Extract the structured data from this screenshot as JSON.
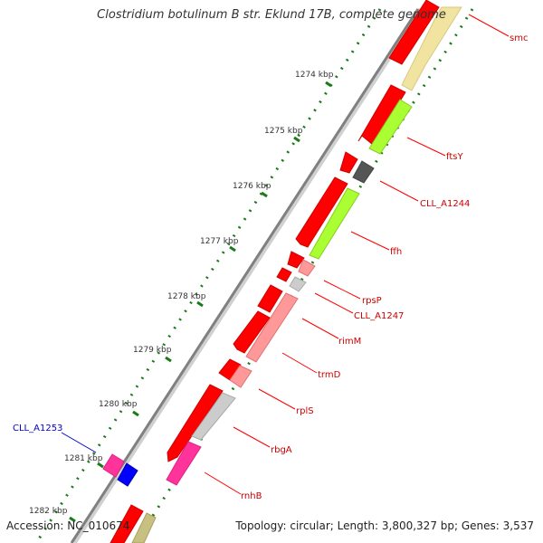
{
  "title": "Clostridium botulinum B str. Eklund 17B, complete genome",
  "footer": {
    "accession": "Accession: NC_010674",
    "summary": "Topology: circular; Length: 3,800,327 bp; Genes: 3,537"
  },
  "colors": {
    "backbone": "#808080",
    "cds": "#ff0000",
    "tick_dot": "#1a7a1a",
    "label_line": "#ff0000",
    "label_text": "#cc0000",
    "highlight_label": "#0000cc"
  },
  "kbp_ticks": [
    {
      "label": "1274 kbp",
      "kb": 1274
    },
    {
      "label": "1275 kbp",
      "kb": 1275
    },
    {
      "label": "1276 kbp",
      "kb": 1276
    },
    {
      "label": "1277 kbp",
      "kb": 1277
    },
    {
      "label": "1278 kbp",
      "kb": 1278
    },
    {
      "label": "1279 kbp",
      "kb": 1279
    },
    {
      "label": "1280 kbp",
      "kb": 1280
    },
    {
      "label": "1281 kbp",
      "kb": 1281
    },
    {
      "label": "1282 kbp",
      "kb": 1282
    }
  ],
  "gene_labels": [
    {
      "name": "smc",
      "color": "#cc0000"
    },
    {
      "name": "ftsY",
      "color": "#cc0000"
    },
    {
      "name": "CLL_A1244",
      "color": "#cc0000"
    },
    {
      "name": "ffh",
      "color": "#cc0000"
    },
    {
      "name": "rpsP",
      "color": "#cc0000"
    },
    {
      "name": "CLL_A1247",
      "color": "#cc0000"
    },
    {
      "name": "rimM",
      "color": "#cc0000"
    },
    {
      "name": "trmD",
      "color": "#cc0000"
    },
    {
      "name": "rplS",
      "color": "#cc0000"
    },
    {
      "name": "rbgA",
      "color": "#cc0000"
    },
    {
      "name": "rnhB",
      "color": "#cc0000"
    },
    {
      "name": "CLL_A1253",
      "color": "#0000cc"
    }
  ]
}
